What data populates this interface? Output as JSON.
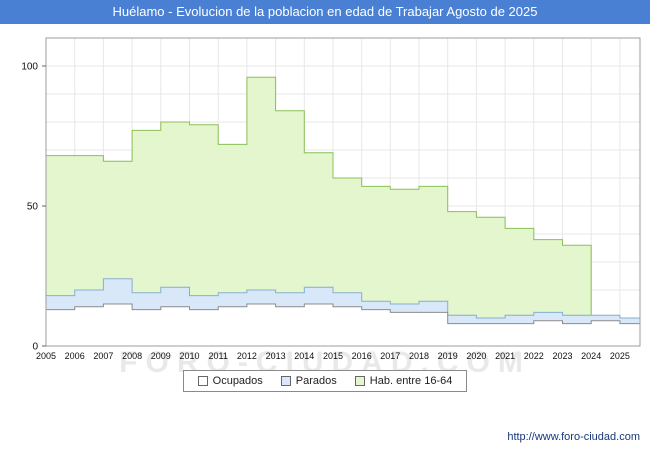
{
  "header": {
    "title": "Huélamo - Evolucion de la poblacion en edad de Trabajar Agosto de 2025",
    "bg_color": "#4a80d4"
  },
  "watermark": "FORO-CIUDAD.COM",
  "footer": {
    "url": "http://www.foro-ciudad.com"
  },
  "chart_data": {
    "type": "area",
    "title": "Huélamo - Evolucion de la poblacion en edad de Trabajar Agosto de 2025",
    "xlabel": "",
    "ylabel": "",
    "x": [
      2005,
      2006,
      2007,
      2008,
      2009,
      2010,
      2011,
      2012,
      2013,
      2014,
      2015,
      2016,
      2017,
      2018,
      2019,
      2020,
      2021,
      2022,
      2023,
      2024,
      2025
    ],
    "x_end": 2025.7,
    "ylim": [
      0,
      110
    ],
    "yticks": [
      0,
      50,
      100
    ],
    "grid": true,
    "legend_position": "bottom",
    "series": [
      {
        "name": "Ocupados",
        "fill": "#ffffff",
        "stroke": "#8c8c8c",
        "values": [
          13,
          14,
          15,
          13,
          14,
          13,
          14,
          15,
          14,
          15,
          14,
          13,
          12,
          12,
          8,
          8,
          8,
          9,
          8,
          9,
          8
        ]
      },
      {
        "name": "Parados",
        "fill": "#d8e8f8",
        "stroke": "#86aed2",
        "values": [
          18,
          20,
          24,
          19,
          21,
          18,
          19,
          20,
          19,
          21,
          19,
          16,
          15,
          16,
          11,
          10,
          11,
          12,
          11,
          11,
          10
        ]
      },
      {
        "name": "Hab. entre 16-64",
        "fill": "#e4f6cd",
        "stroke": "#8cbf57",
        "values": [
          68,
          68,
          66,
          77,
          80,
          79,
          72,
          96,
          84,
          69,
          60,
          57,
          56,
          57,
          48,
          46,
          42,
          38,
          36,
          10,
          10
        ]
      }
    ]
  }
}
